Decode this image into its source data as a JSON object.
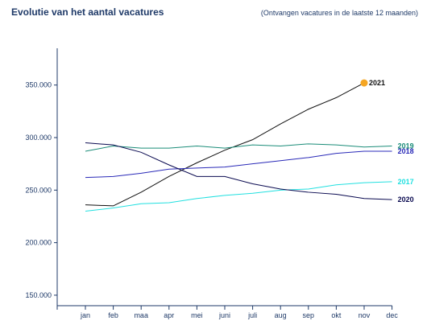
{
  "chart_data": {
    "type": "line",
    "title": "Evolutie van het aantal vacatures",
    "subtitle": "(Ontvangen vacatures in de laatste 12 maanden)",
    "categories": [
      "jan",
      "feb",
      "maa",
      "apr",
      "mei",
      "juni",
      "juli",
      "aug",
      "sep",
      "okt",
      "nov",
      "dec"
    ],
    "ylim": [
      140000,
      385000
    ],
    "yticks": [
      150000,
      200000,
      250000,
      300000,
      350000
    ],
    "ytick_labels": [
      "150.000",
      "200.000",
      "250.000",
      "300.000",
      "350.000"
    ],
    "grid": false,
    "series": [
      {
        "name": "2021",
        "color": "#111111",
        "values": [
          236000,
          235000,
          248000,
          263000,
          276000,
          288000,
          298000,
          313000,
          327000,
          338000,
          352000,
          null
        ],
        "marker_color": "#f5a623"
      },
      {
        "name": "2019",
        "color": "#1a8c78",
        "values": [
          287000,
          292000,
          290000,
          290000,
          292000,
          290000,
          293000,
          292000,
          294000,
          293000,
          291000,
          292000
        ]
      },
      {
        "name": "2018",
        "color": "#2a2ab8",
        "values": [
          262000,
          263000,
          266000,
          270000,
          271000,
          272000,
          275000,
          278000,
          281000,
          285000,
          287000,
          287000
        ]
      },
      {
        "name": "2017",
        "color": "#22e0e0",
        "values": [
          230000,
          233000,
          237000,
          238000,
          242000,
          245000,
          247000,
          250000,
          251000,
          255000,
          257000,
          258000
        ]
      },
      {
        "name": "2020",
        "color": "#0a0a50",
        "values": [
          295000,
          293000,
          286000,
          274000,
          263000,
          263000,
          256000,
          251000,
          248000,
          246000,
          242000,
          241000
        ]
      }
    ]
  }
}
